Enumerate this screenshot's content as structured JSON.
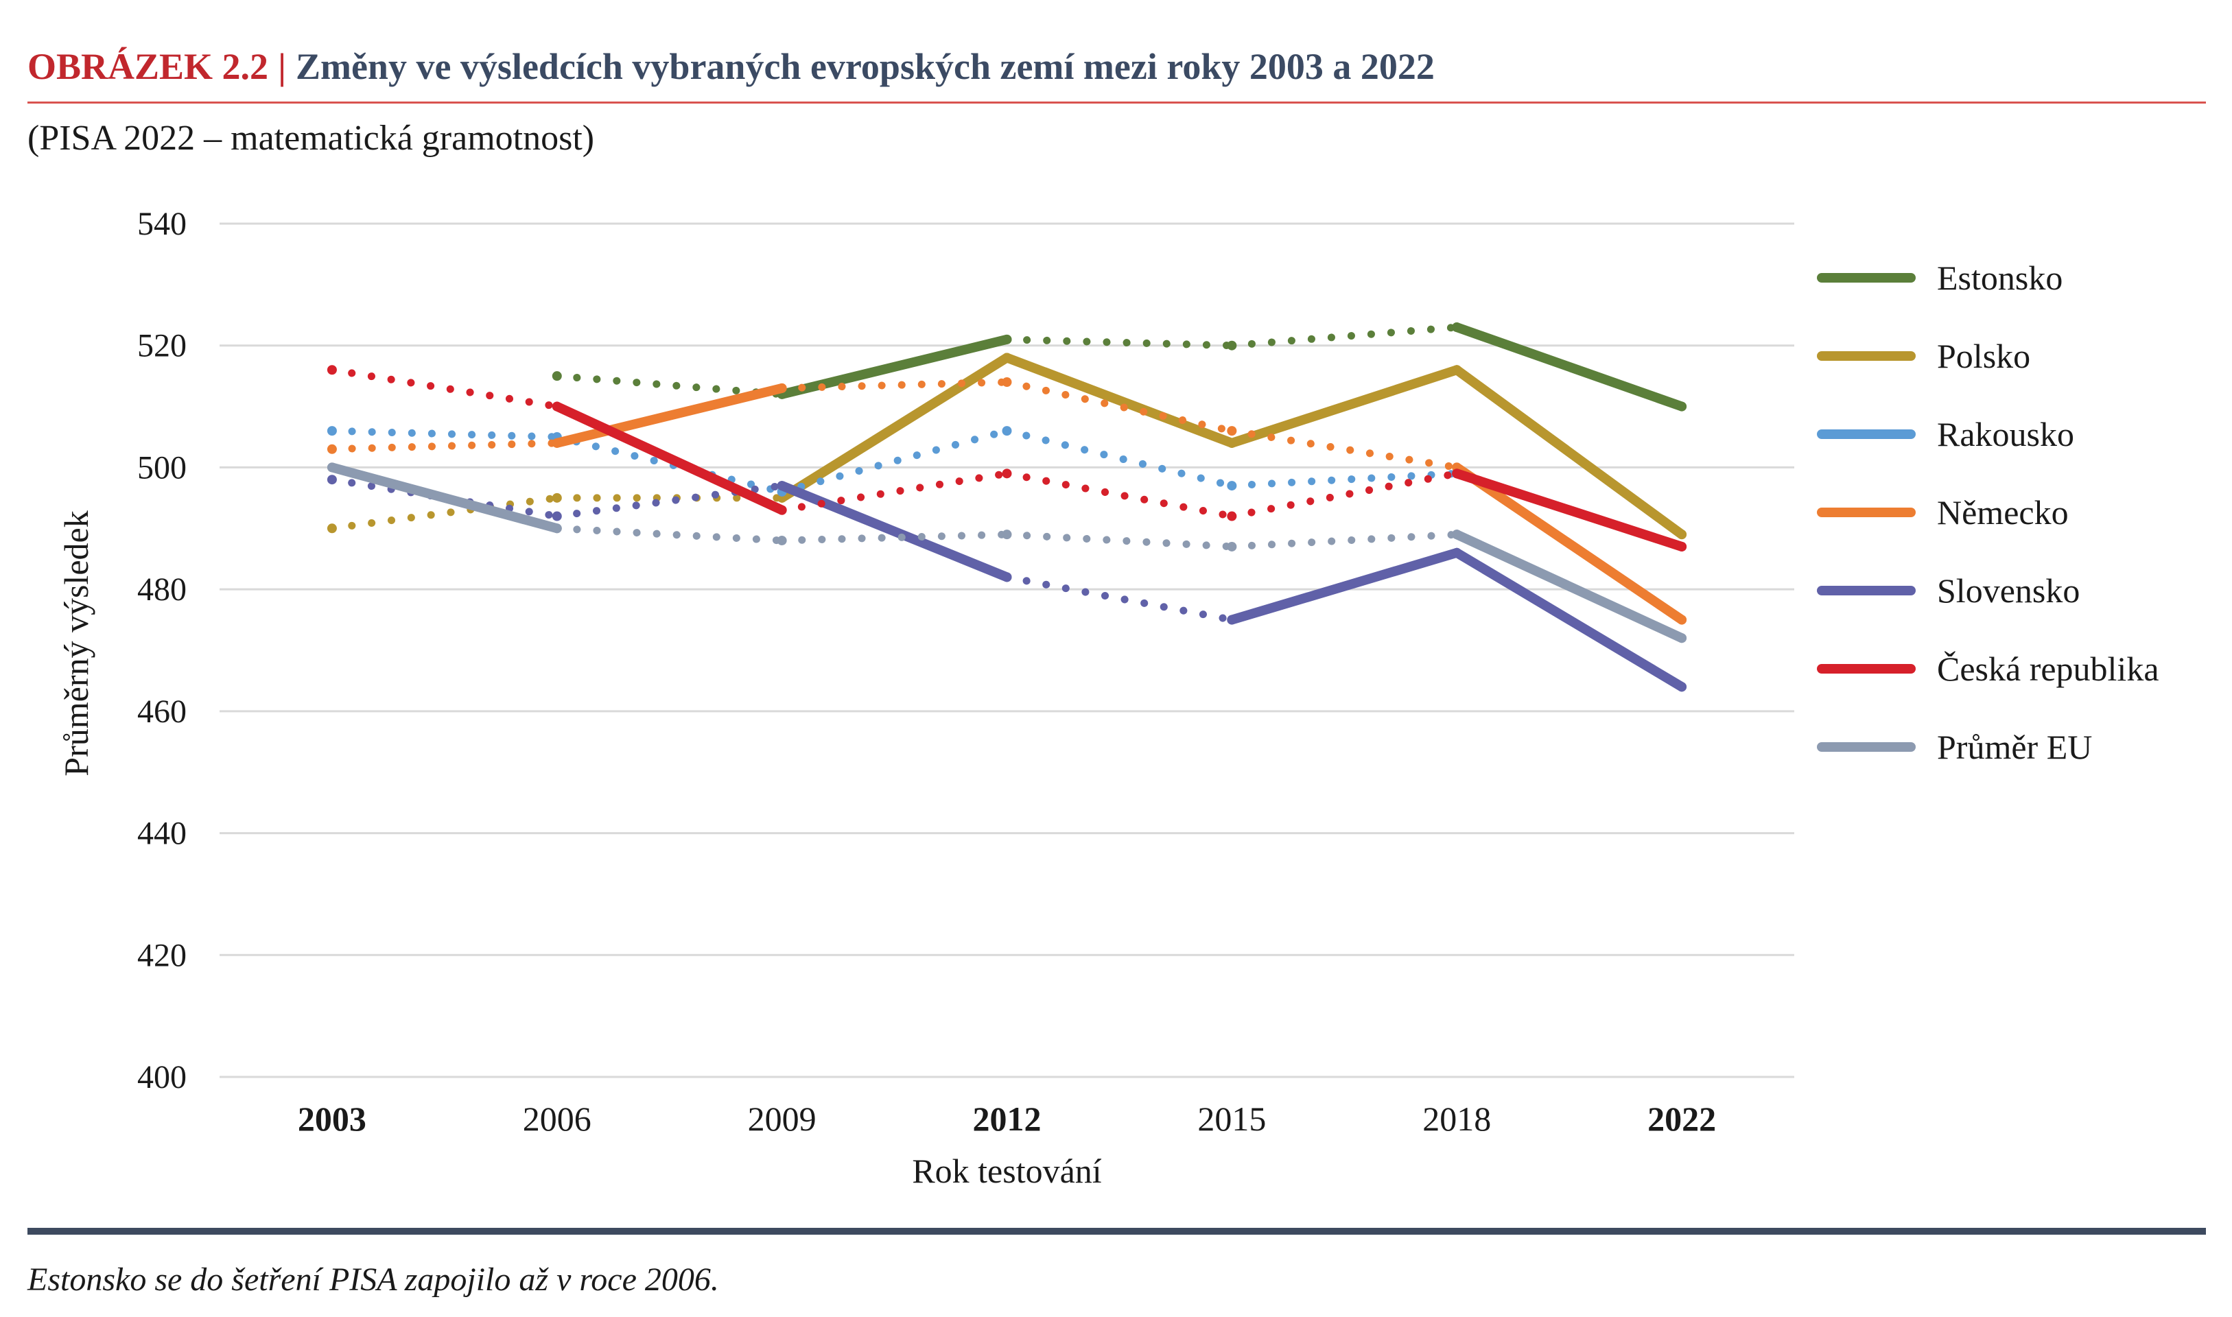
{
  "figure": {
    "label": "OBRÁZEK  2.2",
    "separator": "|",
    "title": "Změny ve výsledcích vybraných evropských zemí mezi roky 2003 a 2022",
    "subtitle": "(PISA 2022 – matematická gramotnost)",
    "note": "Estonsko se do šetření PISA zapojilo až v roce 2006.",
    "label_color": "#c1272d",
    "title_color": "#3b4a63",
    "rule_color": "#3d4a5f"
  },
  "chart_data": {
    "type": "line",
    "xlabel": "Rok testování",
    "ylabel": "Průměrný výsledek",
    "categories": [
      "2003",
      "2006",
      "2009",
      "2012",
      "2015",
      "2018",
      "2022"
    ],
    "bold_categories": [
      "2003",
      "2012",
      "2022"
    ],
    "ylim": [
      400,
      540
    ],
    "yticks": [
      400,
      420,
      440,
      460,
      480,
      500,
      520,
      540
    ],
    "grid": true,
    "legend_position": "right",
    "solid_segment_note": "solid segments connect years of the same PISA math framework cycle; dotted segments connect across cycles",
    "series": [
      {
        "name": "Estonsko",
        "color": "#5b7f3a",
        "values": [
          null,
          515,
          512,
          521,
          520,
          523,
          510
        ],
        "solid": [
          false,
          false,
          true,
          false,
          false,
          true
        ]
      },
      {
        "name": "Polsko",
        "color": "#b8962e",
        "values": [
          490,
          495,
          495,
          518,
          504,
          516,
          489
        ],
        "solid": [
          false,
          false,
          true,
          true,
          true,
          true
        ]
      },
      {
        "name": "Rakousko",
        "color": "#5b9bd5",
        "values": [
          506,
          505,
          496,
          506,
          497,
          499,
          487
        ],
        "solid": [
          false,
          false,
          false,
          false,
          false,
          false
        ]
      },
      {
        "name": "Německo",
        "color": "#ed7d31",
        "values": [
          503,
          504,
          513,
          514,
          506,
          500,
          475
        ],
        "solid": [
          false,
          true,
          false,
          false,
          false,
          true
        ]
      },
      {
        "name": "Slovensko",
        "color": "#6061a8",
        "values": [
          498,
          492,
          497,
          482,
          475,
          486,
          464
        ],
        "solid": [
          false,
          false,
          true,
          false,
          true,
          true
        ]
      },
      {
        "name": "Česká republika",
        "color": "#d6202a",
        "values": [
          516,
          510,
          493,
          499,
          492,
          499,
          487
        ],
        "solid": [
          false,
          true,
          false,
          false,
          false,
          true
        ]
      },
      {
        "name": "Průměr EU",
        "color": "#8c9ab0",
        "values": [
          500,
          490,
          488,
          489,
          487,
          489,
          472
        ],
        "solid": [
          true,
          false,
          false,
          false,
          false,
          true
        ]
      }
    ]
  }
}
